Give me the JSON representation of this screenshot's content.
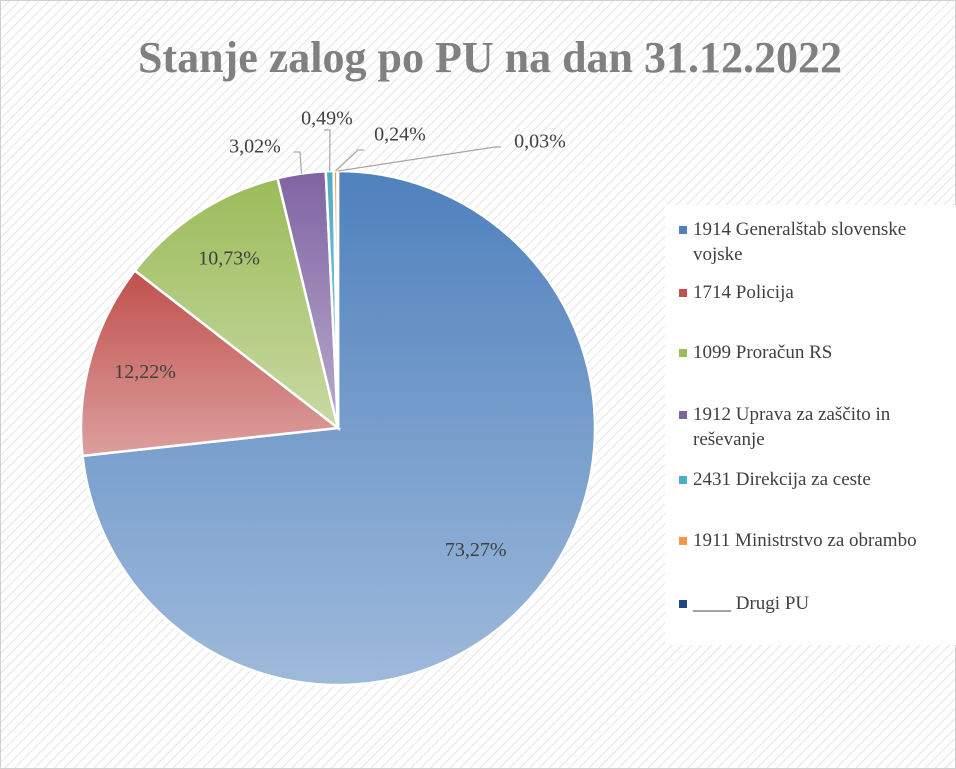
{
  "chart_data": {
    "type": "pie",
    "title": "Stanje zalog po PU na dan 31.12.2022",
    "categories": [
      "1914 Generalštab slovenske vojske",
      "1714 Policija",
      "1099 Proračun RS",
      "1912 Uprava za zaščito in reševanje",
      "2431 Direkcija za ceste",
      "1911 Ministrstvo za obrambo",
      "____  Drugi PU"
    ],
    "values": [
      73.27,
      12.22,
      10.73,
      3.02,
      0.49,
      0.24,
      0.03
    ],
    "value_labels": [
      "73,27%",
      "12,22%",
      "10,73%",
      "3,02%",
      "0,49%",
      "0,24%",
      "0,03%"
    ],
    "colors": [
      "#4f81bd",
      "#c0504d",
      "#9bbb59",
      "#8064a2",
      "#4bacc6",
      "#f79646",
      "#1f497d"
    ],
    "legend": "right"
  }
}
